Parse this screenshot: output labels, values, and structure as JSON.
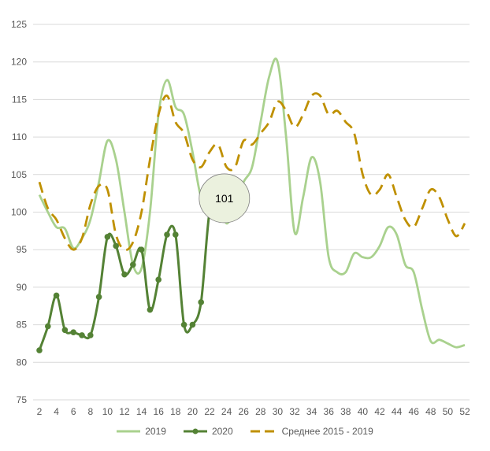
{
  "chart_data": {
    "type": "line",
    "title": "",
    "xlabel": "",
    "ylabel": "",
    "ylim": [
      75,
      125
    ],
    "yticks": [
      75,
      80,
      85,
      90,
      95,
      100,
      105,
      110,
      115,
      120,
      125
    ],
    "xlim": [
      2,
      52
    ],
    "xticks": [
      2,
      4,
      6,
      8,
      10,
      12,
      14,
      16,
      18,
      20,
      22,
      24,
      26,
      28,
      30,
      32,
      34,
      36,
      38,
      40,
      42,
      44,
      46,
      48,
      50,
      52
    ],
    "grid": true,
    "legend_position": "bottom",
    "series": [
      {
        "name": "2019",
        "color": "#a9d18e",
        "style": "solid-smooth",
        "x_start": 2,
        "values": [
          102.3,
          100,
          98,
          97.8,
          95.2,
          96.5,
          99,
          104,
          109.5,
          107,
          100,
          93,
          92.5,
          100,
          113,
          117.6,
          114,
          113,
          108,
          102,
          101.5,
          102,
          98.5,
          101,
          104,
          106,
          112,
          118,
          120,
          110,
          97.3,
          102,
          107.3,
          104,
          94,
          92,
          92,
          94.5,
          94,
          94,
          95.5,
          98,
          97,
          93,
          92,
          87,
          82.8,
          83,
          82.5,
          82,
          82.3
        ]
      },
      {
        "name": "2020",
        "color": "#548235",
        "style": "solid-markers",
        "x_start": 2,
        "values": [
          81.6,
          84.8,
          88.9,
          84.3,
          84,
          83.6,
          83.6,
          88.7,
          96.7,
          95.5,
          91.7,
          93,
          95,
          87,
          91,
          97,
          97,
          85,
          85,
          88,
          100,
          101
        ]
      },
      {
        "name": "Среднее 2015 - 2019",
        "color": "#bf9000",
        "style": "dashed",
        "x_start": 2,
        "values": [
          104,
          100.5,
          99,
          96.5,
          95,
          96.5,
          101,
          103.5,
          103,
          97,
          95,
          96,
          100,
          107,
          113,
          115.5,
          112,
          110.5,
          107,
          106,
          108,
          109,
          106,
          106,
          109.5,
          109,
          110.5,
          112,
          114.7,
          113.5,
          111.3,
          113,
          115.5,
          115.5,
          113,
          113.5,
          112,
          110.5,
          105,
          102.3,
          103,
          105,
          102,
          99,
          98,
          100.5,
          103,
          102,
          99,
          96.8,
          98.5
        ]
      }
    ],
    "annotations": [
      {
        "series": "2020",
        "x": 23,
        "label": "101"
      }
    ]
  }
}
